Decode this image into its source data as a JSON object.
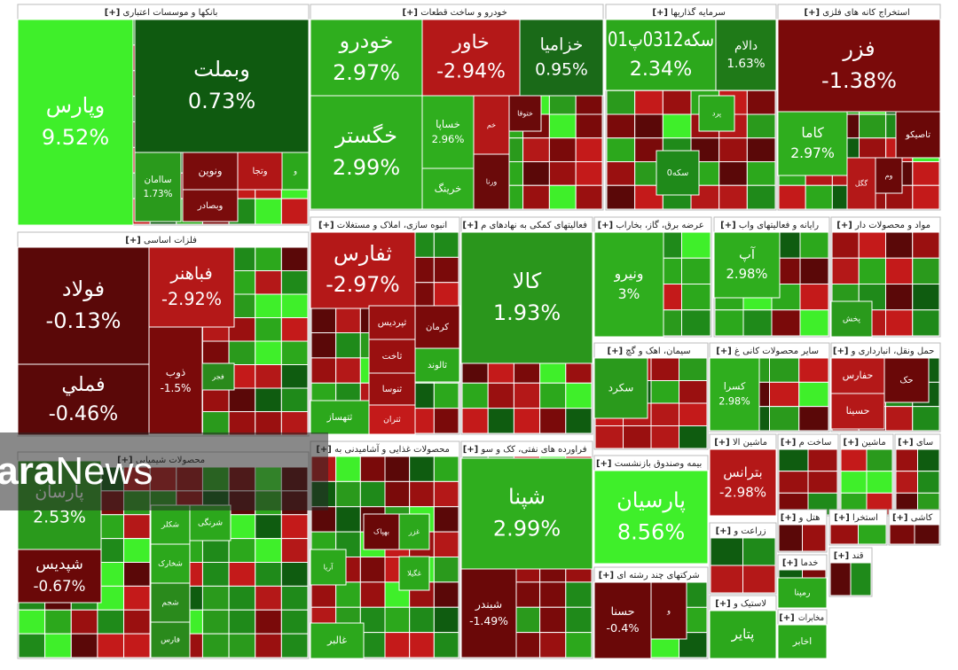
{
  "chart_data": {
    "type": "treemap",
    "expand_label": "[+]",
    "watermark": [
      "Shahrara",
      "News"
    ],
    "sectors": [
      {
        "name": "بانکها و موسسات اعتباری",
        "labels": [
          "وپارس",
          "وبملت",
          "ساامان",
          "ونوین",
          "وبصادر",
          "وتجا",
          "و"
        ],
        "values": [
          9.52,
          0.73,
          1.73,
          null,
          null,
          null,
          null
        ],
        "value_labels": [
          "9.52%",
          "0.73%",
          "1.73%",
          null,
          null,
          null,
          null
        ],
        "colors": [
          "#3fef2a",
          "#0f5a10",
          "#2a9a1c",
          "#7a0c0c",
          "#7a0c0c",
          "#b01616",
          "#2ca81c"
        ]
      },
      {
        "name": "خودرو و ساخت قطعات",
        "labels": [
          "خودرو",
          "خگستر",
          "خاور",
          "خزامیا",
          "خساپا",
          "خرینگ",
          "خم",
          "ورنا",
          "ختوقا"
        ],
        "values": [
          2.97,
          2.99,
          -2.94,
          0.95,
          2.96,
          null,
          null,
          null,
          null
        ],
        "value_labels": [
          "2.97%",
          "2.99%",
          "-2.94%",
          "0.95%",
          "2.96%",
          null,
          null,
          null,
          null
        ],
        "colors": [
          "#2fae1e",
          "#2fae1e",
          "#b41818",
          "#1a6a18",
          "#2fae1e",
          "#2fae1e",
          "#b41818",
          "#6a0a0a",
          "#6a0a0a"
        ]
      },
      {
        "name": "سرمایه گذاریها",
        "labels": [
          "سکه0312پ01",
          "دالام",
          "سکه0",
          "پرد"
        ],
        "values": [
          2.34,
          1.63,
          null,
          null
        ],
        "value_labels": [
          "2.34%",
          "1.63%",
          null,
          null
        ],
        "colors": [
          "#2ca81c",
          "#1f7a18",
          "#1f8a1a",
          "#2ca81c"
        ]
      },
      {
        "name": "استخراج کانه های فلزی",
        "labels": [
          "فزر",
          "کاما",
          "تاصیکو",
          "گگل",
          "وم"
        ],
        "values": [
          -1.38,
          2.97,
          null,
          null,
          null
        ],
        "value_labels": [
          "-1.38%",
          "2.97%",
          null,
          null,
          null
        ],
        "colors": [
          "#7a0a0a",
          "#2fae1e",
          "#6a0808",
          "#b41818",
          "#6a0808"
        ]
      },
      {
        "name": "فلزات اساسی",
        "labels": [
          "فولاد",
          "فملي",
          "فباهنر",
          "فجر",
          "ذوب"
        ],
        "values": [
          -0.13,
          -0.46,
          -2.92,
          null,
          -1.5
        ],
        "value_labels": [
          "-0.13%",
          "-0.46%",
          "-2.92%",
          null,
          "-1.5%"
        ],
        "colors": [
          "#5a0808",
          "#5a0808",
          "#b41818",
          "#2a8a1c",
          "#7a0a0a"
        ]
      },
      {
        "name": "انبوه سازی، املاک و مستغلات",
        "labels": [
          "ثفارس",
          "کرمان",
          "ثپردیس",
          "ثالوند",
          "ثاخت",
          "ثنوسا",
          "ثتهساز",
          "ثتران"
        ],
        "values": [
          -2.97,
          null,
          null,
          null,
          null,
          null,
          null,
          null
        ],
        "value_labels": [
          "-2.97%",
          null,
          null,
          null,
          null,
          null,
          null,
          null
        ],
        "colors": [
          "#b41818",
          "#7a0a0a",
          "#9a1010",
          "#2ca81c",
          "#9a1010",
          "#9a1010",
          "#2ca81c",
          "#c41a1a"
        ]
      },
      {
        "name": "فعالیتهای کمکی به نهادهای م",
        "labels": [
          "کالا"
        ],
        "values": [
          1.93
        ],
        "value_labels": [
          "1.93%"
        ],
        "colors": [
          "#2a961c"
        ]
      },
      {
        "name": "عرضه برق، گاز، بخاراب",
        "labels": [
          "ونیرو"
        ],
        "values": [
          3
        ],
        "value_labels": [
          "3%"
        ],
        "colors": [
          "#2fae1e"
        ]
      },
      {
        "name": "رایانه و فعالیتهای واب",
        "labels": [
          "آپ"
        ],
        "values": [
          2.98
        ],
        "value_labels": [
          "2.98%"
        ],
        "colors": [
          "#2fae1e"
        ]
      },
      {
        "name": "مواد و محصولات دار",
        "labels": [
          "پخش"
        ],
        "values": [
          null
        ],
        "value_labels": [
          null
        ],
        "colors": [
          "#2a9a1c"
        ]
      },
      {
        "name": "سیمان، اهک و گچ",
        "labels": [
          "سکرد"
        ],
        "values": [
          null
        ],
        "value_labels": [
          null
        ],
        "colors": [
          "#2a9a1c"
        ]
      },
      {
        "name": "سایر محصولات کانی غ",
        "labels": [
          "کسرا"
        ],
        "values": [
          2.98
        ],
        "value_labels": [
          "2.98%"
        ],
        "colors": [
          "#2fae1e"
        ]
      },
      {
        "name": "حمل ونقل، انبارداری و",
        "labels": [
          "حفارس",
          "حسینا",
          "حک"
        ],
        "values": [
          null,
          null,
          null
        ],
        "value_labels": [
          null,
          null,
          null
        ],
        "colors": [
          "#b41818",
          "#b41818",
          "#6a0808"
        ]
      },
      {
        "name": "محصولات شیمیایی",
        "labels": [
          "پارسان",
          "شپدیس",
          "شکلر",
          "شخارک",
          "شجم",
          "فارس",
          "شرنگی"
        ],
        "values": [
          2.53,
          -0.67,
          null,
          null,
          null,
          null,
          null
        ],
        "value_labels": [
          "2.53%",
          "-0.67%",
          null,
          null,
          null,
          null,
          null
        ],
        "colors": [
          "#2a9a1c",
          "#6a0808",
          "#2ca81c",
          "#2ca81c",
          "#2a8a1c",
          "#2a8a1c",
          "#2ca81c"
        ]
      },
      {
        "name": "محصولات غذایی و آشامیدنی به",
        "labels": [
          "بهپاک",
          "غزر",
          "غگیلا",
          "غالبر",
          "آریا"
        ],
        "values": [
          null,
          null,
          null,
          null,
          null
        ],
        "value_labels": [
          null,
          null,
          null,
          null,
          null
        ],
        "colors": [
          "#6a0808",
          "#2ca81c",
          "#2ca81c",
          "#2ca81c",
          "#2ca81c"
        ]
      },
      {
        "name": "فراورده های نفتی، کک و سو",
        "labels": [
          "شپنا",
          "شبندر"
        ],
        "values": [
          2.99,
          -1.49
        ],
        "value_labels": [
          "2.99%",
          "-1.49%"
        ],
        "colors": [
          "#2fae1e",
          "#6a0808"
        ]
      },
      {
        "name": "بیمه وصندوق بازنشست",
        "labels": [
          "پارسیان"
        ],
        "values": [
          8.56
        ],
        "value_labels": [
          "8.56%"
        ],
        "colors": [
          "#3fef2a"
        ]
      },
      {
        "name": "شرکتهای چند رشته ای",
        "labels": [
          "حسنا",
          "و"
        ],
        "values": [
          -0.4,
          null
        ],
        "value_labels": [
          "-0.4%",
          null
        ],
        "colors": [
          "#6a0808",
          "#6a0808"
        ]
      },
      {
        "name": "ماشین الا",
        "labels": [
          "بترانس"
        ],
        "values": [
          -2.98
        ],
        "value_labels": [
          "-2.98%"
        ],
        "colors": [
          "#b41818"
        ]
      },
      {
        "name": "ساخت م",
        "labels": [],
        "values": [],
        "value_labels": [],
        "colors": []
      },
      {
        "name": "ماشین",
        "labels": [],
        "values": [],
        "value_labels": [],
        "colors": []
      },
      {
        "name": "سای",
        "labels": [],
        "values": [],
        "value_labels": [],
        "colors": []
      },
      {
        "name": "زراعت و",
        "labels": [],
        "values": [],
        "value_labels": [],
        "colors": []
      },
      {
        "name": "هتل و",
        "labels": [],
        "values": [],
        "value_labels": [],
        "colors": []
      },
      {
        "name": "استخرا",
        "labels": [],
        "values": [],
        "value_labels": [],
        "colors": []
      },
      {
        "name": "کاشی",
        "labels": [],
        "values": [],
        "value_labels": [],
        "colors": []
      },
      {
        "name": "خدما",
        "labels": [
          "رمپنا"
        ],
        "values": [
          null
        ],
        "value_labels": [
          null
        ],
        "colors": [
          "#2ca81c"
        ]
      },
      {
        "name": "قند",
        "labels": [],
        "values": [],
        "value_labels": [],
        "colors": []
      },
      {
        "name": "لاستیک و",
        "labels": [
          "پتایر"
        ],
        "values": [
          null
        ],
        "value_labels": [
          null
        ],
        "colors": [
          "#2ca81c"
        ]
      },
      {
        "name": "مخابرات",
        "labels": [
          "اخابر"
        ],
        "values": [
          null
        ],
        "value_labels": [
          null
        ],
        "colors": [
          "#2ca81c"
        ]
      }
    ]
  }
}
